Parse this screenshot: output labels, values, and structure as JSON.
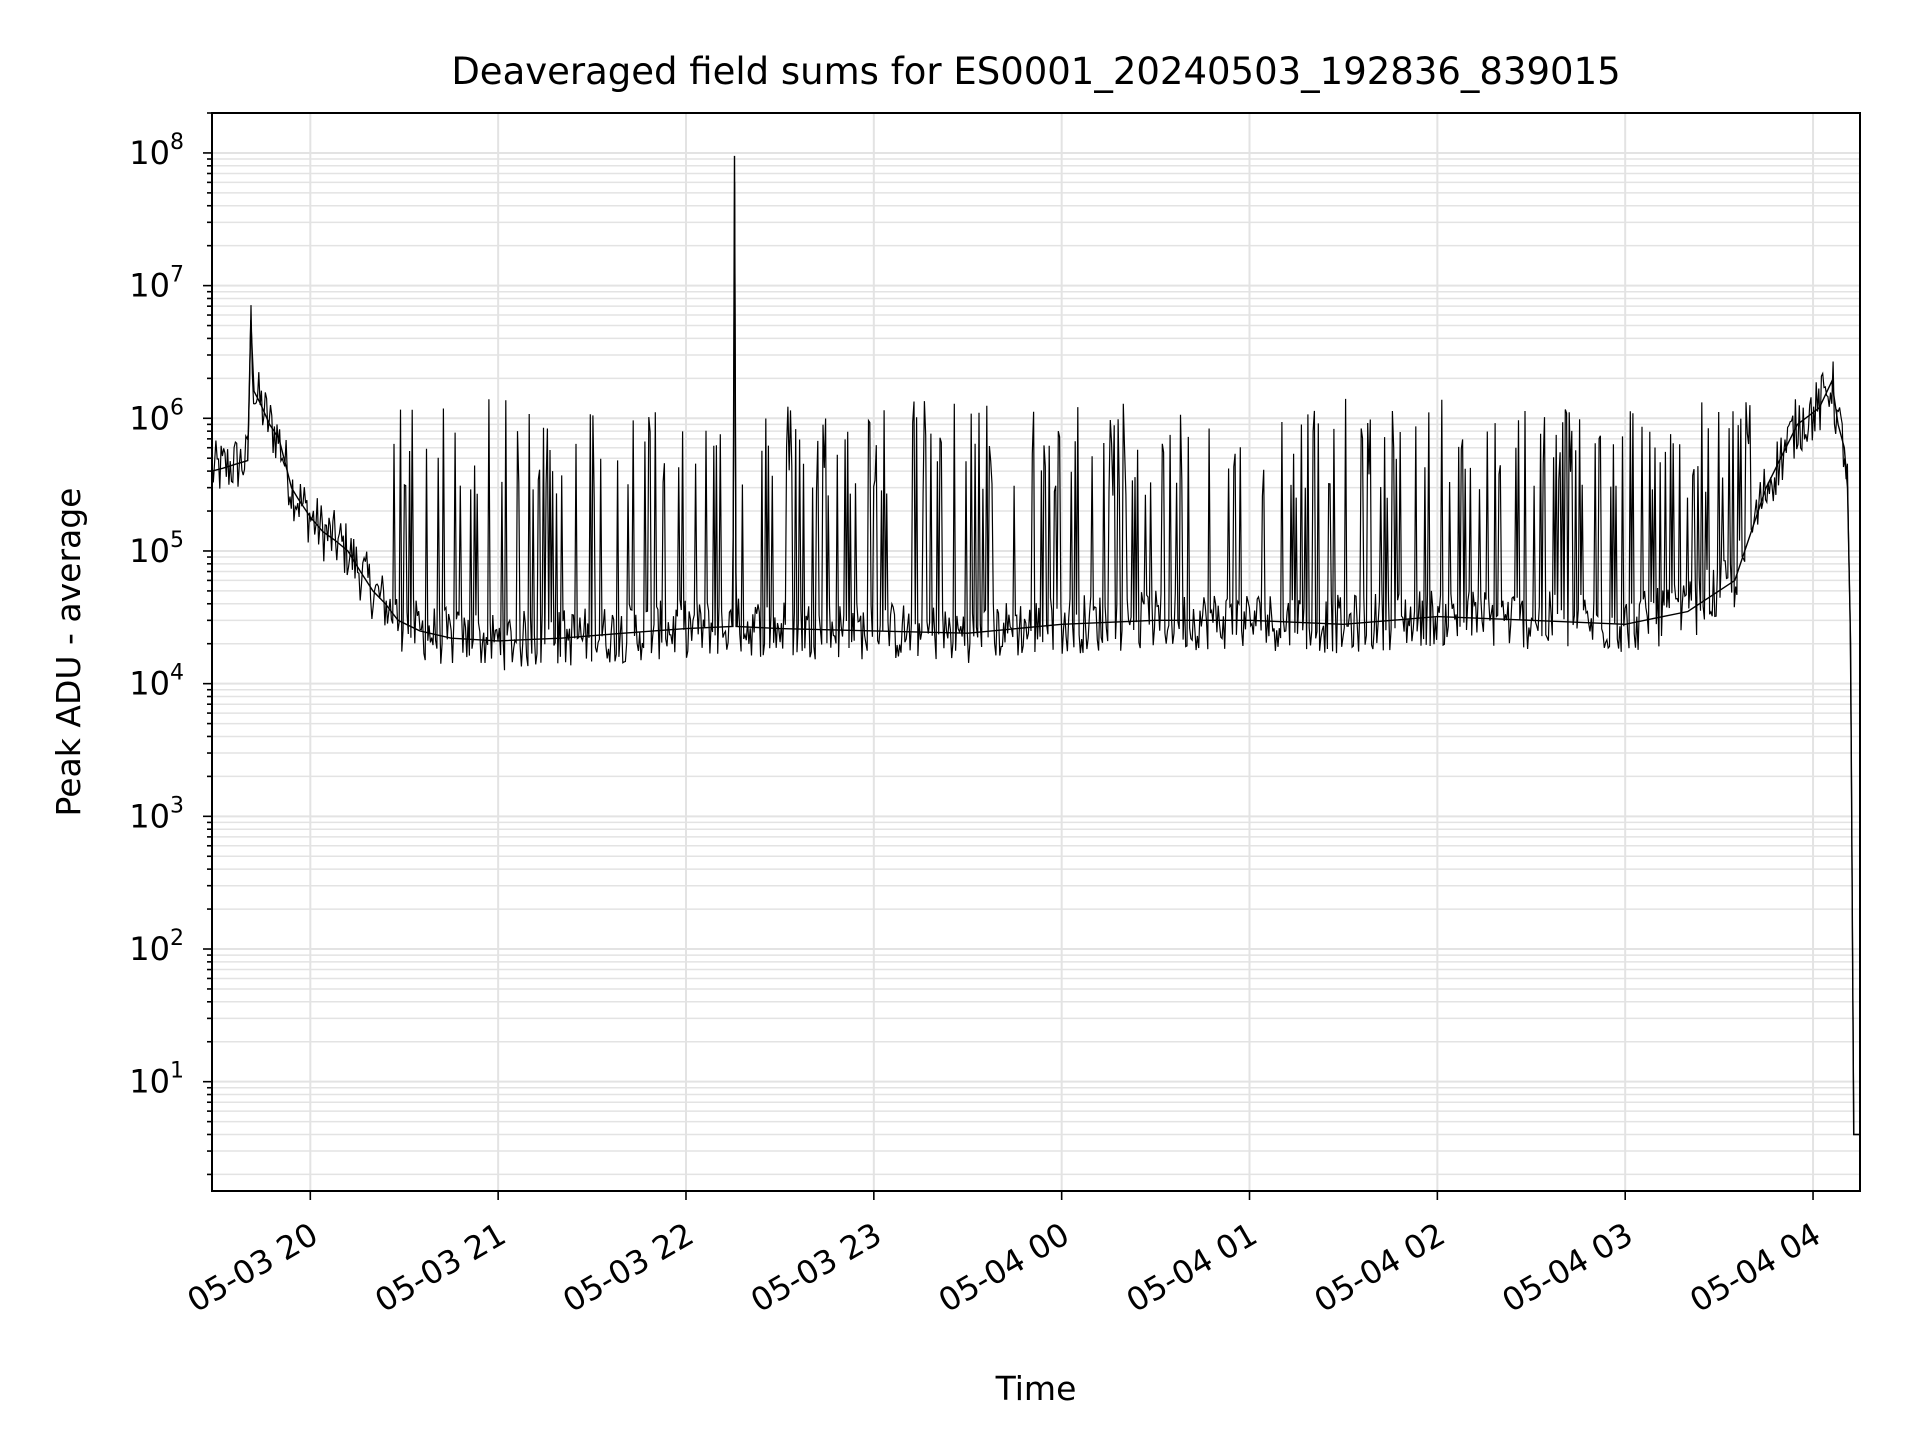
{
  "chart_data": {
    "type": "line",
    "title": "Deaveraged field sums for ES0001_20240503_192836_839015",
    "xlabel": "Time",
    "ylabel": "Peak ADU - average",
    "yscale": "log",
    "ylim": [
      1.5,
      200000000
    ],
    "xlim": [
      "2024-05-03 19:28:36",
      "2024-05-04 04:15:00"
    ],
    "grid": true,
    "x_ticks": [
      "05-03 20",
      "05-03 21",
      "05-03 22",
      "05-03 23",
      "05-04 00",
      "05-04 01",
      "05-04 02",
      "05-04 03",
      "05-04 04"
    ],
    "y_ticks": [
      {
        "base": "10",
        "exp": "1"
      },
      {
        "base": "10",
        "exp": "2"
      },
      {
        "base": "10",
        "exp": "3"
      },
      {
        "base": "10",
        "exp": "4"
      },
      {
        "base": "10",
        "exp": "5"
      },
      {
        "base": "10",
        "exp": "6"
      },
      {
        "base": "10",
        "exp": "7"
      },
      {
        "base": "10",
        "exp": "8"
      }
    ],
    "series": [
      {
        "color": "#000000",
        "x": [
          "2024-05-03 19:28:36",
          "2024-05-03 19:32:00",
          "2024-05-03 19:36:00",
          "2024-05-03 19:40:00",
          "2024-05-03 19:41:00",
          "2024-05-03 19:42:00",
          "2024-05-03 19:44:00",
          "2024-05-03 19:47:00",
          "2024-05-03 19:50:00",
          "2024-05-03 19:54:00",
          "2024-05-03 19:56:00",
          "2024-05-03 20:00:00",
          "2024-05-03 20:04:00",
          "2024-05-03 20:08:00",
          "2024-05-03 20:12:00",
          "2024-05-03 20:16:00",
          "2024-05-03 20:20:00",
          "2024-05-03 20:24:00",
          "2024-05-03 20:28:00",
          "2024-05-03 20:35:00",
          "2024-05-03 20:45:00",
          "2024-05-03 21:00:00",
          "2024-05-03 21:20:00",
          "2024-05-03 21:40:00",
          "2024-05-03 22:00:00",
          "2024-05-03 22:15:00",
          "2024-05-03 22:15:30",
          "2024-05-03 22:16:00",
          "2024-05-03 22:30:00",
          "2024-05-03 23:00:00",
          "2024-05-03 23:30:00",
          "2024-05-04 00:00:00",
          "2024-05-04 00:30:00",
          "2024-05-04 01:00:00",
          "2024-05-04 01:30:00",
          "2024-05-04 02:00:00",
          "2024-05-04 02:30:00",
          "2024-05-04 03:00:00",
          "2024-05-04 03:20:00",
          "2024-05-04 03:35:00",
          "2024-05-04 03:45:00",
          "2024-05-04 03:55:00",
          "2024-05-04 04:02:00",
          "2024-05-04 04:06:00",
          "2024-05-04 04:08:00",
          "2024-05-04 04:10:00",
          "2024-05-04 04:11:00",
          "2024-05-04 04:12:00",
          "2024-05-04 04:13:00",
          "2024-05-04 04:15:00"
        ],
        "y": [
          400000,
          420000,
          450000,
          480000,
          5500000,
          1600000,
          1300000,
          900000,
          700000,
          300000,
          250000,
          180000,
          140000,
          120000,
          100000,
          70000,
          50000,
          40000,
          30000,
          25000,
          22000,
          21000,
          22000,
          24000,
          26000,
          27000,
          95000000,
          27000,
          26000,
          25000,
          24000,
          28000,
          30000,
          30000,
          28000,
          32000,
          30000,
          28000,
          35000,
          60000,
          300000,
          900000,
          1200000,
          1900000,
          900000,
          600000,
          300000,
          20000,
          4,
          4
        ]
      }
    ]
  }
}
